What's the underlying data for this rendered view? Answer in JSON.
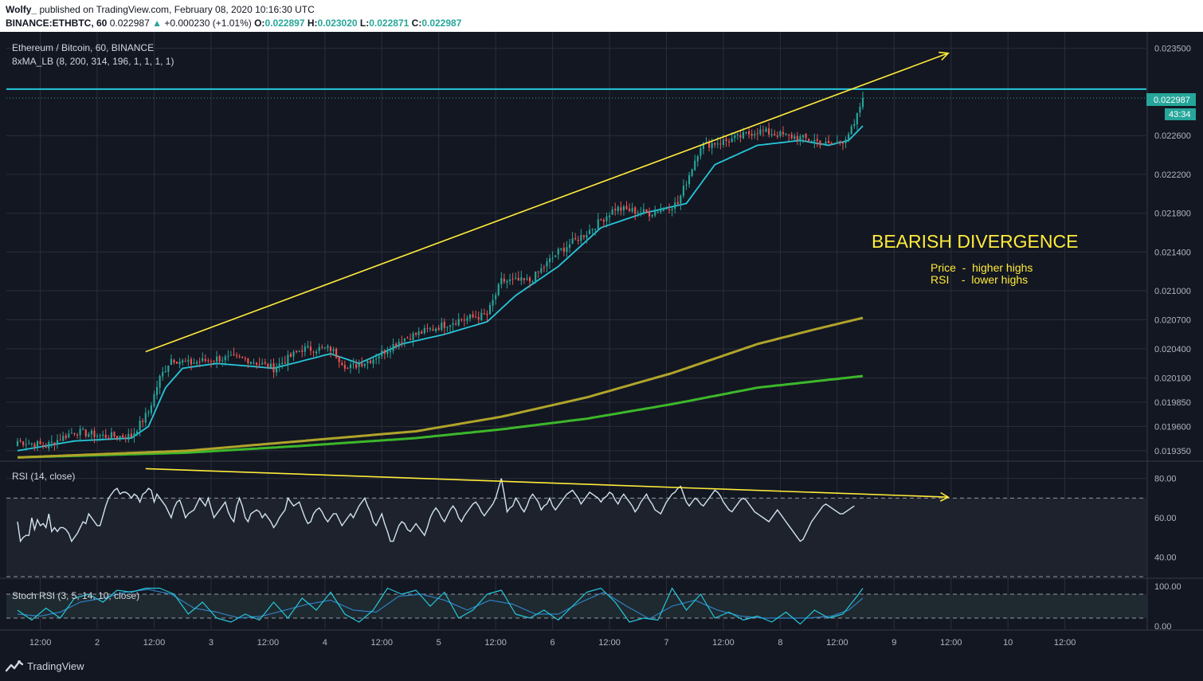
{
  "header": {
    "author": "Wolfy_",
    "published": "published on TradingView.com, February 08, 2020 10:16:30 UTC",
    "symbol_line": "BINANCE:ETHBTC, 60",
    "last_price": "0.022987",
    "change": "+0.000230 (+1.01%)",
    "o_label": "O:",
    "o_value": "0.022897",
    "h_label": "H:",
    "h_value": "0.023020",
    "l_label": "L:",
    "l_value": "0.022871",
    "c_label": "C:",
    "c_value": "0.022987"
  },
  "footer": {
    "brand": "TradingView"
  },
  "colors": {
    "background": "#131722",
    "grid": "#2a2e39",
    "up_candle": "#26a69a",
    "down_candle": "#ef5350",
    "ma_cyan": "#26c6da",
    "ma_olive": "#b0a42a",
    "ma_green": "#3cb82a",
    "trendline": "#ffeb3b",
    "rsi_line": "#d0e4f0",
    "stoch_k": "#26c6da",
    "stoch_d": "#2f7fc1"
  },
  "chart_data": [
    {
      "type": "candlestick",
      "title": "Ethereum / Bitcoin, 60, BINANCE",
      "indicator_label": "8xMA_LB (8, 200, 314, 196, 1, 1, 1, 1)",
      "ylim": [
        0.01925,
        0.02367
      ],
      "y_ticks": [
        "0.023500",
        "0.022600",
        "0.022200",
        "0.021800",
        "0.021400",
        "0.021000",
        "0.020700",
        "0.020400",
        "0.020100",
        "0.019850",
        "0.019600",
        "0.019350"
      ],
      "x_ticks": [
        "12:00",
        "2",
        "12:00",
        "3",
        "12:00",
        "4",
        "12:00",
        "5",
        "12:00",
        "6",
        "12:00",
        "7",
        "12:00",
        "8",
        "12:00",
        "9",
        "12:00",
        "10",
        "12:00"
      ],
      "price_label": "0.022987",
      "countdown_label": "43:34",
      "resistance_level": 0.02308,
      "resistance_color": "#26c6da",
      "last_price_line": 0.022987,
      "close_anchors": [
        [
          0,
          0.01945
        ],
        [
          10,
          0.0194
        ],
        [
          20,
          0.01955
        ],
        [
          30,
          0.0195
        ],
        [
          40,
          0.0195
        ],
        [
          46,
          0.01975
        ],
        [
          50,
          0.0201
        ],
        [
          54,
          0.0203
        ],
        [
          60,
          0.02025
        ],
        [
          70,
          0.0203
        ],
        [
          80,
          0.0203
        ],
        [
          90,
          0.0202
        ],
        [
          100,
          0.0204
        ],
        [
          110,
          0.0204
        ],
        [
          116,
          0.0202
        ],
        [
          125,
          0.0203
        ],
        [
          135,
          0.0205
        ],
        [
          145,
          0.0206
        ],
        [
          155,
          0.0207
        ],
        [
          165,
          0.02075
        ],
        [
          170,
          0.0211
        ],
        [
          180,
          0.0211
        ],
        [
          190,
          0.0214
        ],
        [
          200,
          0.0216
        ],
        [
          210,
          0.02185
        ],
        [
          222,
          0.0218
        ],
        [
          232,
          0.0219
        ],
        [
          240,
          0.0225
        ],
        [
          250,
          0.02255
        ],
        [
          260,
          0.02265
        ],
        [
          270,
          0.0226
        ],
        [
          280,
          0.02255
        ],
        [
          285,
          0.0225
        ],
        [
          290,
          0.02255
        ],
        [
          294,
          0.0227
        ],
        [
          297,
          0.023
        ]
      ],
      "ma_fast": {
        "color": "#26c6da",
        "values": [
          [
            0,
            0.01935
          ],
          [
            20,
            0.01945
          ],
          [
            40,
            0.01948
          ],
          [
            46,
            0.0196
          ],
          [
            52,
            0.02
          ],
          [
            58,
            0.0202
          ],
          [
            70,
            0.02025
          ],
          [
            90,
            0.0202
          ],
          [
            110,
            0.02035
          ],
          [
            120,
            0.02025
          ],
          [
            135,
            0.02045
          ],
          [
            150,
            0.02055
          ],
          [
            165,
            0.02068
          ],
          [
            175,
            0.02095
          ],
          [
            190,
            0.02125
          ],
          [
            205,
            0.02165
          ],
          [
            220,
            0.0218
          ],
          [
            235,
            0.0219
          ],
          [
            245,
            0.0223
          ],
          [
            260,
            0.0225
          ],
          [
            275,
            0.02255
          ],
          [
            285,
            0.0225
          ],
          [
            292,
            0.02255
          ],
          [
            297,
            0.0227
          ]
        ]
      },
      "ma_olive": {
        "color": "#b0a42a",
        "values": [
          [
            0,
            0.01928
          ],
          [
            60,
            0.01935
          ],
          [
            100,
            0.01945
          ],
          [
            140,
            0.01955
          ],
          [
            170,
            0.0197
          ],
          [
            200,
            0.0199
          ],
          [
            230,
            0.02015
          ],
          [
            260,
            0.02045
          ],
          [
            280,
            0.0206
          ],
          [
            297,
            0.02072
          ]
        ]
      },
      "ma_green": {
        "color": "#3cb82a",
        "values": [
          [
            0,
            0.01928
          ],
          [
            60,
            0.01933
          ],
          [
            100,
            0.0194
          ],
          [
            140,
            0.01948
          ],
          [
            170,
            0.01957
          ],
          [
            200,
            0.01968
          ],
          [
            230,
            0.01983
          ],
          [
            260,
            0.02
          ],
          [
            297,
            0.02012
          ]
        ]
      },
      "trendline": {
        "from": [
          45,
          0.02037
        ],
        "to": [
          297,
          0.02308
        ],
        "arrow_to": [
          327,
          0.02345
        ]
      },
      "annotation_title": "BEARISH DIVERGENCE",
      "annotation_line1": "Price  -  higher highs",
      "annotation_line2": "RSI    -  lower highs"
    },
    {
      "type": "line",
      "title": "RSI (14, close)",
      "ylim": [
        30,
        88
      ],
      "y_ticks": [
        "80.00",
        "60.00",
        "40.00"
      ],
      "bands": [
        70,
        30
      ],
      "values": [
        58,
        48,
        50,
        51,
        51,
        60,
        54,
        59,
        56,
        57,
        55,
        62,
        53,
        55,
        53,
        55,
        55,
        54,
        52,
        48,
        50,
        52,
        55,
        58,
        57,
        62,
        60,
        58,
        56,
        56,
        61,
        66,
        70,
        72,
        74,
        75,
        72,
        73,
        73,
        72,
        70,
        72,
        71,
        68,
        72,
        73,
        75,
        74,
        68,
        72,
        70,
        68,
        66,
        63,
        60,
        65,
        68,
        69,
        65,
        60,
        62,
        63,
        64,
        67,
        70,
        68,
        66,
        70,
        65,
        60,
        62,
        64,
        66,
        68,
        63,
        60,
        58,
        66,
        70,
        66,
        60,
        58,
        62,
        63,
        64,
        63,
        60,
        62,
        60,
        58,
        55,
        57,
        60,
        62,
        64,
        70,
        68,
        66,
        67,
        68,
        64,
        60,
        57,
        58,
        62,
        64,
        65,
        63,
        60,
        58,
        60,
        62,
        62,
        59,
        56,
        58,
        60,
        62,
        60,
        63,
        66,
        68,
        70,
        66,
        63,
        58,
        56,
        59,
        62,
        57,
        53,
        48,
        48,
        52,
        56,
        58,
        57,
        54,
        53,
        55,
        57,
        55,
        53,
        51,
        55,
        60,
        63,
        65,
        63,
        60,
        58,
        61,
        64,
        66,
        64,
        60,
        58,
        61,
        63,
        65,
        67,
        68,
        66,
        63,
        61,
        63,
        65,
        67,
        70,
        75,
        80,
        72,
        63,
        65,
        66,
        70,
        68,
        65,
        63,
        66,
        70,
        72,
        70,
        68,
        64,
        66,
        67,
        70,
        66,
        64,
        66,
        68,
        70,
        72,
        73,
        74,
        72,
        70,
        67,
        69,
        71,
        73,
        72,
        71,
        70,
        68,
        70,
        71,
        73,
        72,
        69,
        67,
        70,
        72,
        70,
        68,
        66,
        63,
        65,
        68,
        70,
        72,
        69,
        67,
        64,
        63,
        62,
        65,
        68,
        70,
        72,
        73,
        75,
        76,
        72,
        68,
        66,
        68,
        70,
        69,
        67,
        66,
        68,
        70,
        72,
        74,
        73,
        71,
        68,
        66,
        64,
        63,
        65,
        67,
        69,
        70,
        69,
        67,
        65,
        63,
        62,
        61,
        60,
        59,
        58,
        60,
        62,
        64,
        62,
        60,
        58,
        56,
        54,
        52,
        50,
        48,
        49,
        52,
        55,
        58,
        60,
        62,
        64,
        66,
        67,
        66,
        65,
        64,
        63,
        62,
        62,
        63,
        64,
        65,
        66
      ],
      "trendline": {
        "from": [
          45,
          85
        ],
        "to": [
          327,
          70.5
        ]
      }
    },
    {
      "type": "line",
      "title": "Stoch RSI (3, 5, 14, 10, close)",
      "ylim": [
        0,
        100
      ],
      "y_ticks": [
        "100.00",
        "0.00"
      ],
      "bands": [
        80,
        20
      ],
      "k_anchors": [
        [
          0,
          40
        ],
        [
          5,
          15
        ],
        [
          10,
          45
        ],
        [
          15,
          20
        ],
        [
          20,
          70
        ],
        [
          25,
          80
        ],
        [
          30,
          60
        ],
        [
          35,
          90
        ],
        [
          40,
          85
        ],
        [
          45,
          95
        ],
        [
          50,
          95
        ],
        [
          55,
          80
        ],
        [
          60,
          30
        ],
        [
          65,
          60
        ],
        [
          70,
          20
        ],
        [
          75,
          10
        ],
        [
          80,
          30
        ],
        [
          85,
          15
        ],
        [
          90,
          60
        ],
        [
          95,
          20
        ],
        [
          100,
          70
        ],
        [
          105,
          40
        ],
        [
          110,
          85
        ],
        [
          115,
          30
        ],
        [
          120,
          10
        ],
        [
          125,
          40
        ],
        [
          130,
          95
        ],
        [
          135,
          80
        ],
        [
          140,
          90
        ],
        [
          145,
          50
        ],
        [
          150,
          85
        ],
        [
          155,
          20
        ],
        [
          160,
          40
        ],
        [
          165,
          80
        ],
        [
          170,
          90
        ],
        [
          175,
          30
        ],
        [
          180,
          20
        ],
        [
          185,
          40
        ],
        [
          190,
          15
        ],
        [
          195,
          50
        ],
        [
          200,
          85
        ],
        [
          205,
          95
        ],
        [
          210,
          60
        ],
        [
          215,
          10
        ],
        [
          220,
          20
        ],
        [
          225,
          15
        ],
        [
          230,
          95
        ],
        [
          235,
          40
        ],
        [
          240,
          80
        ],
        [
          245,
          20
        ],
        [
          250,
          35
        ],
        [
          255,
          15
        ],
        [
          260,
          25
        ],
        [
          265,
          10
        ],
        [
          270,
          35
        ],
        [
          275,
          5
        ],
        [
          280,
          40
        ],
        [
          285,
          20
        ],
        [
          290,
          30
        ],
        [
          295,
          75
        ],
        [
          297,
          95
        ]
      ],
      "d_anchors": [
        [
          0,
          30
        ],
        [
          8,
          25
        ],
        [
          15,
          35
        ],
        [
          22,
          60
        ],
        [
          30,
          70
        ],
        [
          38,
          85
        ],
        [
          46,
          92
        ],
        [
          54,
          80
        ],
        [
          62,
          45
        ],
        [
          70,
          35
        ],
        [
          78,
          20
        ],
        [
          86,
          25
        ],
        [
          94,
          40
        ],
        [
          102,
          55
        ],
        [
          110,
          65
        ],
        [
          118,
          40
        ],
        [
          126,
          35
        ],
        [
          134,
          75
        ],
        [
          142,
          80
        ],
        [
          150,
          65
        ],
        [
          158,
          40
        ],
        [
          166,
          65
        ],
        [
          174,
          55
        ],
        [
          182,
          30
        ],
        [
          190,
          30
        ],
        [
          198,
          60
        ],
        [
          206,
          85
        ],
        [
          214,
          50
        ],
        [
          222,
          18
        ],
        [
          230,
          50
        ],
        [
          238,
          65
        ],
        [
          246,
          40
        ],
        [
          254,
          25
        ],
        [
          262,
          20
        ],
        [
          270,
          20
        ],
        [
          278,
          20
        ],
        [
          286,
          25
        ],
        [
          292,
          40
        ],
        [
          297,
          70
        ]
      ]
    }
  ]
}
